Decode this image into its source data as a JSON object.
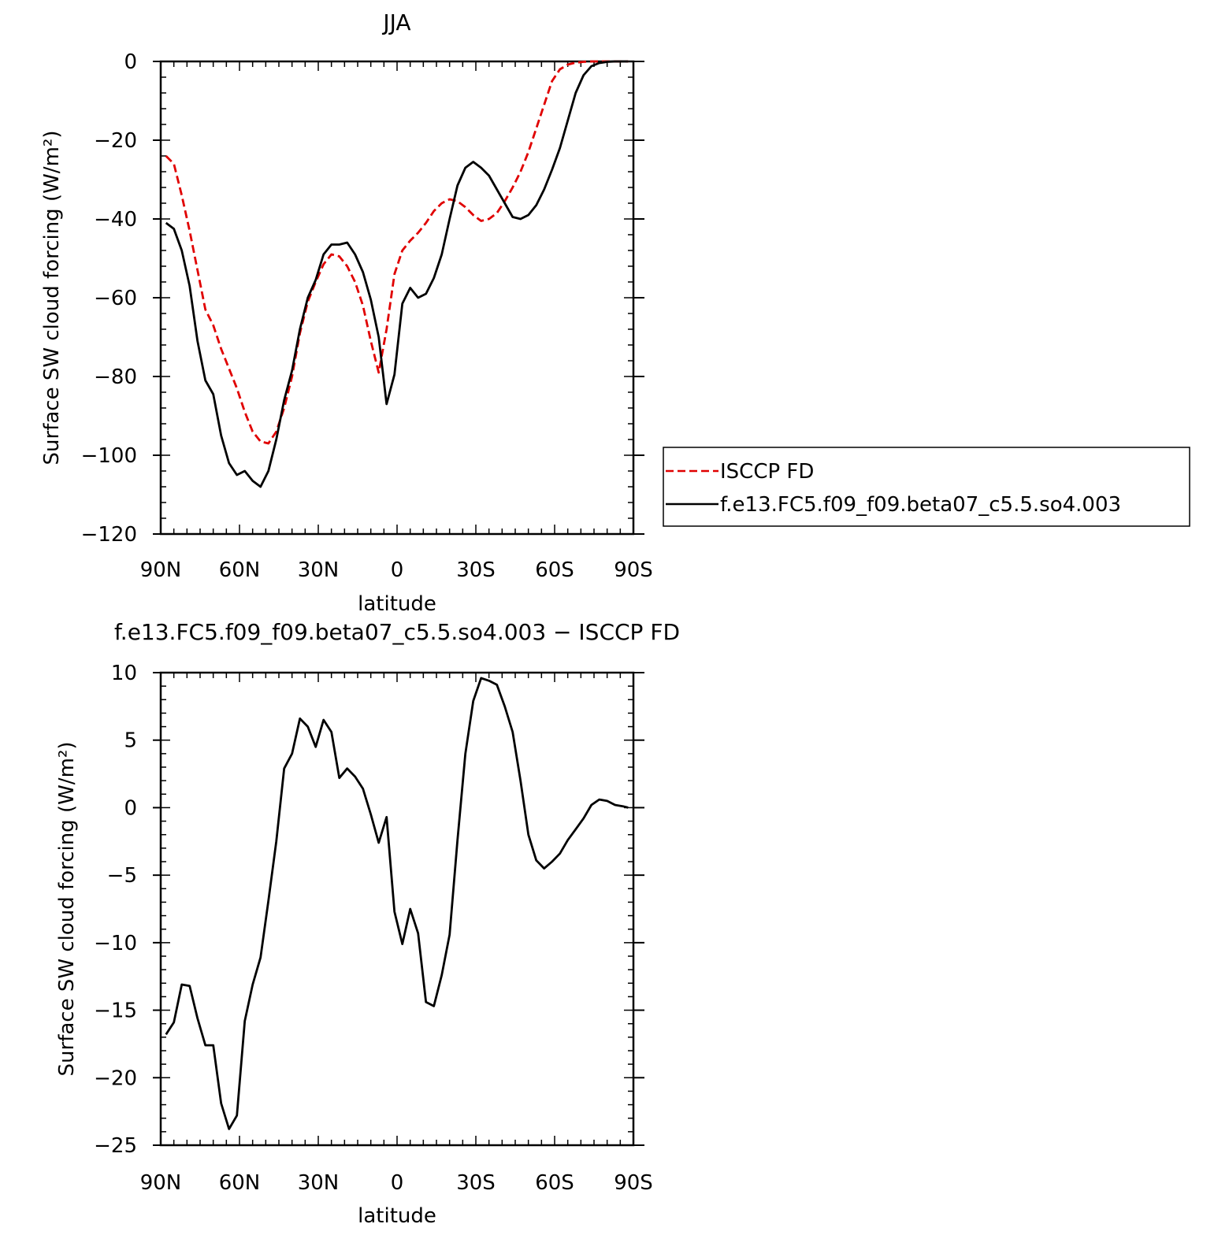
{
  "chart_data": [
    {
      "type": "line",
      "title": "JJA",
      "xlabel": "latitude",
      "ylabel": "Surface SW cloud forcing (W/m²)",
      "xlim": [
        -90,
        90
      ],
      "ylim": [
        -120,
        0
      ],
      "x_ticks": [
        -90,
        -60,
        -30,
        0,
        30,
        60,
        90
      ],
      "x_tick_labels": [
        "90N",
        "60N",
        "30N",
        "0",
        "30S",
        "60S",
        "90S"
      ],
      "y_ticks": [
        0,
        -20,
        -40,
        -60,
        -80,
        -100,
        -120
      ],
      "y_tick_labels": [
        "0",
        "−20",
        "−40",
        "−60",
        "−80",
        "−100",
        "−120"
      ],
      "legend_position": "right",
      "series": [
        {
          "name": "ISCCP FD",
          "color": "#e00000",
          "dash": "dashed",
          "x": [
            -88,
            -85,
            -82,
            -79,
            -76,
            -73,
            -70,
            -67,
            -64,
            -61,
            -58,
            -55,
            -52,
            -49,
            -46,
            -43,
            -40,
            -37,
            -34,
            -31,
            -28,
            -25,
            -22,
            -19,
            -16,
            -13,
            -10,
            -7,
            -4,
            -1,
            2,
            5,
            8,
            11,
            14,
            17,
            20,
            23,
            26,
            29,
            32,
            35,
            38,
            41,
            44,
            47,
            50,
            53,
            56,
            59,
            62,
            65,
            68,
            71,
            74,
            77,
            80,
            83,
            86,
            88
          ],
          "y": [
            -24,
            -26,
            -34,
            -43,
            -53,
            -63,
            -67,
            -73,
            -78,
            -83,
            -89,
            -94,
            -96.5,
            -97,
            -94,
            -88,
            -80,
            -69,
            -61,
            -56,
            -51.5,
            -49,
            -49.5,
            -52,
            -56,
            -62,
            -71,
            -79,
            -68,
            -54,
            -48,
            -45.5,
            -43.5,
            -41,
            -38,
            -36,
            -35,
            -35.5,
            -37,
            -39,
            -40.5,
            -40,
            -38.5,
            -35.5,
            -32,
            -28,
            -23,
            -17,
            -11,
            -5,
            -2,
            -0.8,
            -0.3,
            -0.1,
            0,
            0,
            0,
            0,
            0,
            0
          ]
        },
        {
          "name": "f.e13.FC5.f09_f09.beta07_c5.5.so4.003",
          "color": "#000000",
          "dash": "solid",
          "x": [
            -88,
            -85,
            -82,
            -79,
            -76,
            -73,
            -70,
            -67,
            -64,
            -61,
            -58,
            -55,
            -52,
            -49,
            -46,
            -43,
            -40,
            -37,
            -34,
            -31,
            -28,
            -25,
            -22,
            -19,
            -16,
            -13,
            -10,
            -7,
            -4,
            -1,
            2,
            5,
            8,
            11,
            14,
            17,
            20,
            23,
            26,
            29,
            32,
            35,
            38,
            41,
            44,
            47,
            50,
            53,
            56,
            59,
            62,
            65,
            68,
            71,
            74,
            77,
            80,
            83,
            86,
            88
          ],
          "y": [
            -41,
            -42.5,
            -48,
            -57,
            -71,
            -81,
            -84.5,
            -95,
            -102,
            -105,
            -104,
            -106.5,
            -108,
            -104,
            -96,
            -86,
            -78.5,
            -68,
            -60,
            -55.5,
            -49,
            -46.5,
            -46.5,
            -46,
            -49,
            -53.5,
            -60.5,
            -70,
            -87,
            -79.5,
            -61.5,
            -57.5,
            -60,
            -59,
            -55,
            -49,
            -40,
            -31.5,
            -27,
            -25.5,
            -27,
            -29,
            -32.5,
            -36,
            -39.5,
            -40,
            -39,
            -36.5,
            -32.5,
            -27.5,
            -22,
            -15,
            -8,
            -3.5,
            -1.2,
            -0.4,
            -0.1,
            0,
            0,
            0
          ]
        }
      ]
    },
    {
      "type": "line",
      "title": "f.e13.FC5.f09_f09.beta07_c5.5.so4.003 − ISCCP FD",
      "xlabel": "latitude",
      "ylabel": "Surface SW cloud forcing (W/m²)",
      "xlim": [
        -90,
        90
      ],
      "ylim": [
        -25,
        10
      ],
      "x_ticks": [
        -90,
        -60,
        -30,
        0,
        30,
        60,
        90
      ],
      "x_tick_labels": [
        "90N",
        "60N",
        "30N",
        "0",
        "30S",
        "60S",
        "90S"
      ],
      "y_ticks": [
        10,
        5,
        0,
        -5,
        -10,
        -15,
        -20,
        -25
      ],
      "y_tick_labels": [
        "10",
        "5",
        "0",
        "−5",
        "−10",
        "−15",
        "−20",
        "−25"
      ],
      "series": [
        {
          "color": "#000000",
          "dash": "solid",
          "x": [
            -88,
            -85,
            -82,
            -79,
            -76,
            -73,
            -70,
            -67,
            -64,
            -61,
            -58,
            -55,
            -52,
            -49,
            -46,
            -43,
            -40,
            -37,
            -34,
            -31,
            -28,
            -25,
            -22,
            -19,
            -16,
            -13,
            -10,
            -7,
            -4,
            -1,
            2,
            5,
            8,
            11,
            14,
            17,
            20,
            23,
            26,
            29,
            32,
            35,
            38,
            41,
            44,
            47,
            50,
            53,
            56,
            59,
            62,
            65,
            68,
            71,
            74,
            77,
            80,
            83,
            86,
            88
          ],
          "y": [
            -16.8,
            -15.9,
            -13.1,
            -13.2,
            -15.6,
            -17.6,
            -17.6,
            -21.9,
            -23.8,
            -22.8,
            -15.8,
            -13.1,
            -11.1,
            -6.9,
            -2.5,
            2.9,
            4,
            6.6,
            6,
            4.5,
            6.5,
            5.6,
            2.2,
            2.9,
            2.3,
            1.4,
            -0.5,
            -2.6,
            -0.7,
            -7.7,
            -10.1,
            -7.5,
            -9.3,
            -14.4,
            -14.7,
            -12.4,
            -9.4,
            -2.4,
            4,
            7.9,
            9.6,
            9.4,
            9.1,
            7.5,
            5.6,
            2,
            -2,
            -3.9,
            -4.5,
            -4,
            -3.4,
            -2.4,
            -1.6,
            -0.8,
            0.2,
            0.6,
            0.5,
            0.2,
            0.1,
            0
          ]
        }
      ]
    }
  ]
}
